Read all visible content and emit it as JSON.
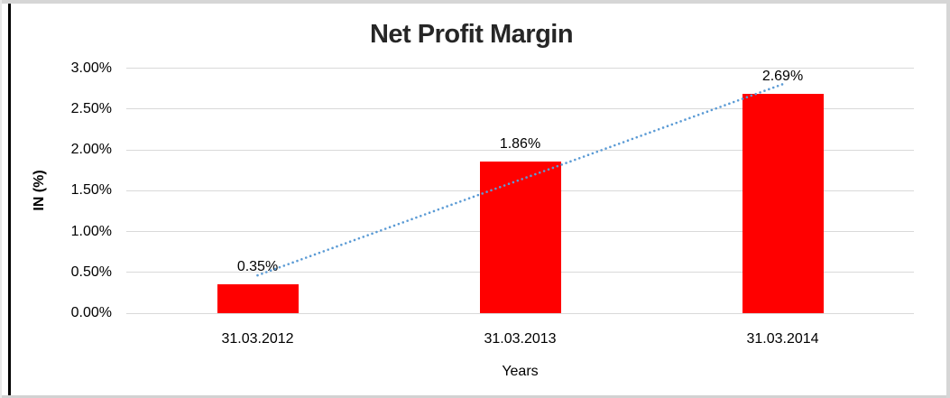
{
  "chart_data": {
    "type": "bar",
    "title": "Net Profit Margin",
    "xlabel": "Years",
    "ylabel": "IN (%)",
    "categories": [
      "31.03.2012",
      "31.03.2013",
      "31.03.2014"
    ],
    "values": [
      0.35,
      1.86,
      2.69
    ],
    "value_labels": [
      "0.35%",
      "1.86%",
      "2.69%"
    ],
    "ylim": [
      0,
      3
    ],
    "ytick_step": 0.5,
    "ytick_labels": [
      "0.00%",
      "0.50%",
      "1.00%",
      "1.50%",
      "2.00%",
      "2.50%",
      "3.00%"
    ],
    "grid": true,
    "legend": "none",
    "bar_color": "#ff0000",
    "gridline_color": "#d9d9d9",
    "trendline": {
      "type": "linear",
      "style": "dotted",
      "color": "#5b9bd5"
    }
  }
}
